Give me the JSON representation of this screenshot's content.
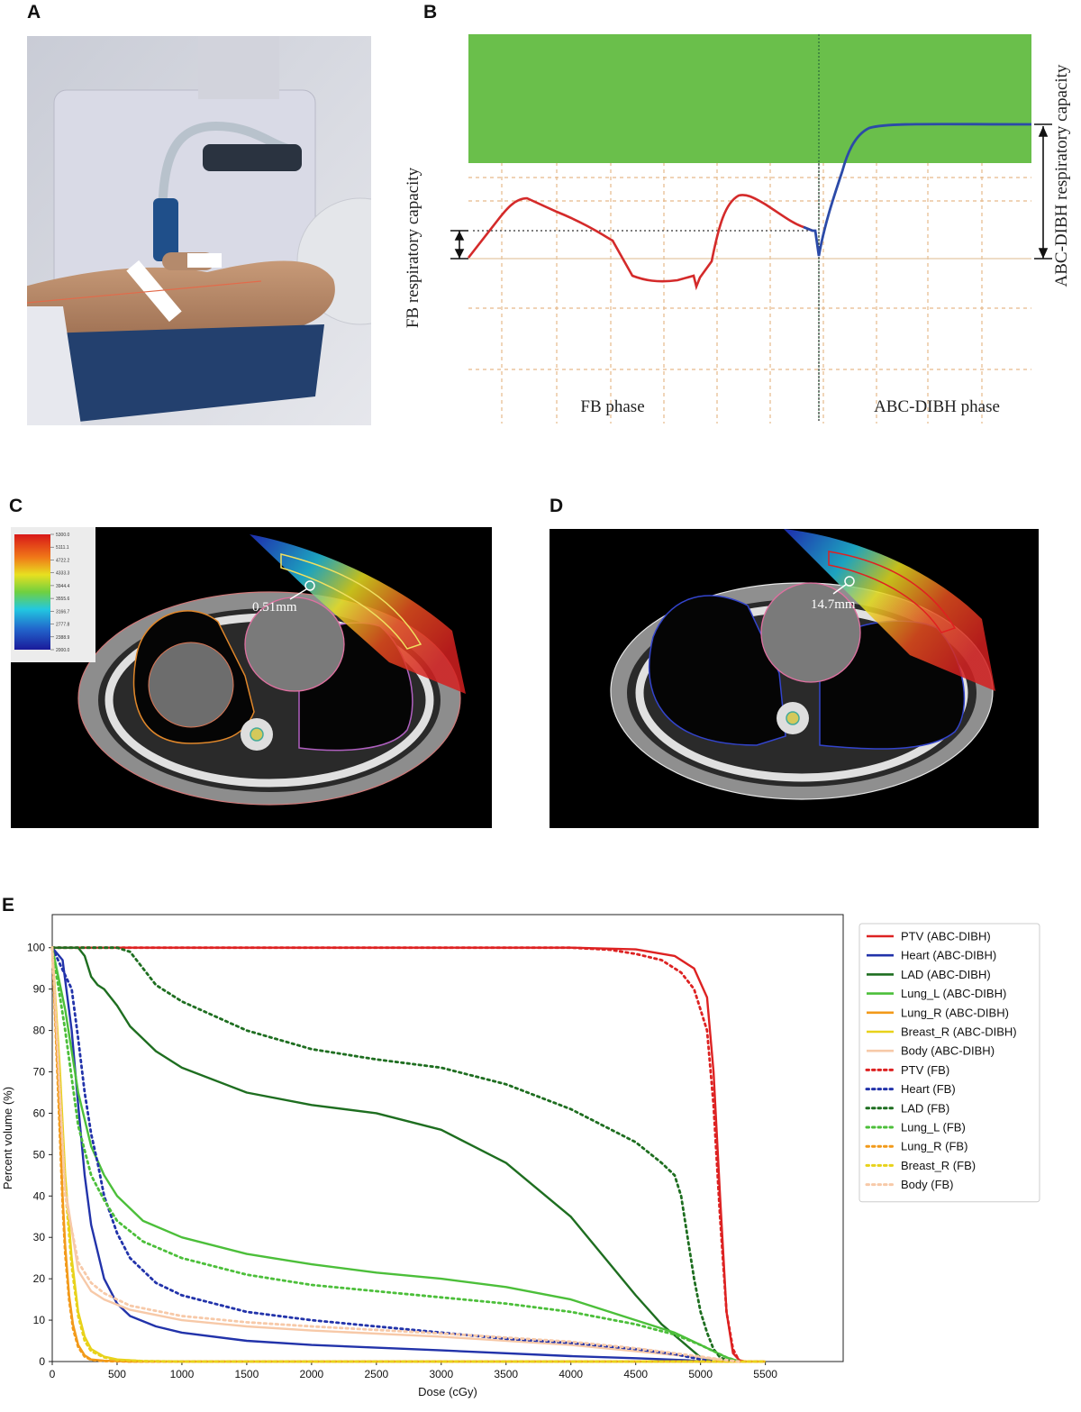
{
  "panels": {
    "a": {
      "letter": "A"
    },
    "b": {
      "letter": "B",
      "fb_phase_label": "FB phase",
      "dibh_phase_label": "ABC-DIBH phase",
      "fb_capacity_label": "FB respiratory capacity",
      "dibh_capacity_label": "ABC-DIBH respiratory capacity",
      "colors": {
        "window": "#6abf4b",
        "fb_trace": "#d42a2a",
        "dibh_trace": "#2b4aa8",
        "grid": "#e7b98a"
      }
    },
    "c": {
      "letter": "C",
      "distance_label": "0.51mm",
      "colorbar_ticks": [
        "5300.0",
        "5111.1",
        "4722.2",
        "4333.3",
        "3944.4",
        "3555.6",
        "3166.7",
        "2777.8",
        "2388.9",
        "2000.0"
      ]
    },
    "d": {
      "letter": "D",
      "distance_label": "14.7mm"
    },
    "e": {
      "letter": "E"
    }
  },
  "chart_data": {
    "type": "line",
    "xlabel": "Dose (cGy)",
    "ylabel": "Percent volume (%)",
    "xlim": [
      0,
      6100
    ],
    "ylim": [
      0,
      108
    ],
    "xticks": [
      0,
      500,
      1000,
      1500,
      2000,
      2500,
      3000,
      3500,
      4000,
      4500,
      5000,
      5500
    ],
    "yticks": [
      0,
      10,
      20,
      30,
      40,
      50,
      60,
      70,
      80,
      90,
      100
    ],
    "grid": false,
    "legend_position": "outside-right",
    "series": [
      {
        "name": "PTV (ABC-DIBH)",
        "color": "#dd2222",
        "style": "solid",
        "x": [
          0,
          1000,
          2000,
          3000,
          4000,
          4500,
          4800,
          4950,
          5050,
          5100,
          5150,
          5200,
          5250,
          5300,
          5350
        ],
        "y": [
          100,
          100,
          100,
          100,
          100,
          99.6,
          98,
          95,
          88,
          70,
          40,
          12,
          2,
          0.3,
          0
        ]
      },
      {
        "name": "Heart (ABC-DIBH)",
        "color": "#2233aa",
        "style": "solid",
        "x": [
          0,
          80,
          150,
          200,
          250,
          300,
          400,
          500,
          600,
          800,
          1000,
          1500,
          2000,
          3000,
          4000,
          4500,
          4900,
          5000
        ],
        "y": [
          100,
          97,
          80,
          62,
          45,
          33,
          20,
          14,
          11,
          8.5,
          7,
          5,
          4,
          2.7,
          1.3,
          0.8,
          0.3,
          0
        ]
      },
      {
        "name": "LAD (ABC-DIBH)",
        "color": "#1e6e20",
        "style": "solid",
        "x": [
          0,
          200,
          250,
          300,
          350,
          400,
          450,
          500,
          600,
          800,
          1000,
          1500,
          2000,
          2500,
          3000,
          3500,
          4000,
          4500,
          4700,
          4850,
          5000,
          5100
        ],
        "y": [
          100,
          100,
          98,
          93,
          91,
          90,
          88,
          86,
          81,
          75,
          71,
          65,
          62,
          60,
          56,
          48,
          35,
          16,
          9,
          5,
          1,
          0
        ]
      },
      {
        "name": "Lung_L (ABC-DIBH)",
        "color": "#4cbf3a",
        "style": "solid",
        "x": [
          0,
          100,
          200,
          300,
          400,
          500,
          700,
          1000,
          1500,
          2000,
          2500,
          3000,
          3500,
          4000,
          4500,
          4800,
          5000,
          5200,
          5300
        ],
        "y": [
          100,
          85,
          65,
          52,
          45,
          40,
          34,
          30,
          26,
          23.5,
          21.5,
          20,
          18,
          15,
          10,
          7,
          4,
          1,
          0
        ]
      },
      {
        "name": "Lung_R (ABC-DIBH)",
        "color": "#f29a1a",
        "style": "solid",
        "x": [
          0,
          50,
          80,
          100,
          130,
          160,
          200,
          250,
          300,
          400,
          600,
          1000,
          5500
        ],
        "y": [
          100,
          65,
          40,
          28,
          16,
          9,
          4,
          1.5,
          0.5,
          0.2,
          0,
          0,
          0
        ]
      },
      {
        "name": "Breast_R (ABC-DIBH)",
        "color": "#e8d21a",
        "style": "solid",
        "x": [
          0,
          60,
          100,
          150,
          200,
          250,
          300,
          400,
          500,
          700,
          1000,
          5500
        ],
        "y": [
          100,
          70,
          45,
          25,
          12,
          6,
          3,
          1.2,
          0.5,
          0.1,
          0,
          0
        ]
      },
      {
        "name": "Body (ABC-DIBH)",
        "color": "#f7c9a8",
        "style": "solid",
        "x": [
          0,
          100,
          200,
          300,
          400,
          600,
          1000,
          1500,
          2000,
          3000,
          4000,
          4500,
          5000,
          5200,
          5300
        ],
        "y": [
          100,
          42,
          22,
          17,
          15,
          12.5,
          10,
          8.5,
          7.5,
          6,
          4,
          2.5,
          1,
          0.3,
          0
        ]
      },
      {
        "name": "PTV (FB)",
        "color": "#dd2222",
        "style": "dotted",
        "x": [
          0,
          1000,
          2000,
          3000,
          4000,
          4300,
          4500,
          4700,
          4850,
          4950,
          5050,
          5100,
          5150,
          5200,
          5250,
          5300
        ],
        "y": [
          100,
          100,
          100,
          100,
          100,
          99.5,
          98.5,
          97,
          94,
          90,
          80,
          62,
          35,
          12,
          3,
          0
        ]
      },
      {
        "name": "Heart (FB)",
        "color": "#2233aa",
        "style": "dotted",
        "x": [
          0,
          150,
          200,
          250,
          300,
          350,
          400,
          500,
          600,
          800,
          1000,
          1500,
          2000,
          2500,
          3000,
          3500,
          4000,
          4500,
          4800,
          5000,
          5100
        ],
        "y": [
          100,
          90,
          78,
          65,
          55,
          48,
          40,
          31,
          25,
          19,
          16,
          12,
          10,
          8.5,
          7,
          5.5,
          4.5,
          3,
          1.8,
          0.5,
          0
        ]
      },
      {
        "name": "LAD (FB)",
        "color": "#1e6e20",
        "style": "dotted",
        "x": [
          0,
          500,
          600,
          700,
          800,
          1000,
          1500,
          2000,
          2500,
          3000,
          3500,
          4000,
          4500,
          4700,
          4800,
          4850,
          4900,
          4950,
          5000,
          5050,
          5100,
          5150,
          5200,
          5250
        ],
        "y": [
          100,
          100,
          99,
          95,
          91,
          87,
          80,
          75.5,
          73,
          71,
          67,
          61,
          53,
          48,
          45,
          40,
          30,
          20,
          12,
          7,
          3,
          1,
          0.3,
          0
        ]
      },
      {
        "name": "Lung_L (FB)",
        "color": "#4cbf3a",
        "style": "dotted",
        "x": [
          0,
          100,
          200,
          300,
          400,
          500,
          700,
          1000,
          1500,
          2000,
          2500,
          3000,
          3500,
          4000,
          4500,
          4800,
          5000,
          5200,
          5300
        ],
        "y": [
          100,
          80,
          57,
          45,
          39,
          34,
          29,
          25,
          21,
          18.5,
          17,
          15.5,
          14,
          12,
          9,
          6.5,
          4,
          1,
          0
        ]
      },
      {
        "name": "Lung_R (FB)",
        "color": "#f29a1a",
        "style": "dotted",
        "x": [
          0,
          50,
          80,
          100,
          130,
          160,
          200,
          250,
          300,
          400,
          600,
          1000,
          5500
        ],
        "y": [
          100,
          62,
          38,
          26,
          15,
          8,
          3.5,
          1.2,
          0.4,
          0.1,
          0,
          0,
          0
        ]
      },
      {
        "name": "Breast_R (FB)",
        "color": "#e8d21a",
        "style": "dotted",
        "x": [
          0,
          60,
          100,
          150,
          200,
          250,
          300,
          400,
          500,
          700,
          1000,
          5500
        ],
        "y": [
          100,
          68,
          42,
          23,
          11,
          5,
          2.5,
          1,
          0.4,
          0.1,
          0,
          0
        ]
      },
      {
        "name": "Body (FB)",
        "color": "#f7c9a8",
        "style": "dotted",
        "x": [
          0,
          100,
          200,
          300,
          400,
          600,
          1000,
          1500,
          2000,
          3000,
          4000,
          4500,
          5000,
          5200,
          5300
        ],
        "y": [
          100,
          40,
          24,
          19,
          16.5,
          13.5,
          11,
          9.5,
          8.5,
          6.8,
          4.8,
          3.2,
          1.2,
          0.3,
          0
        ]
      }
    ]
  }
}
